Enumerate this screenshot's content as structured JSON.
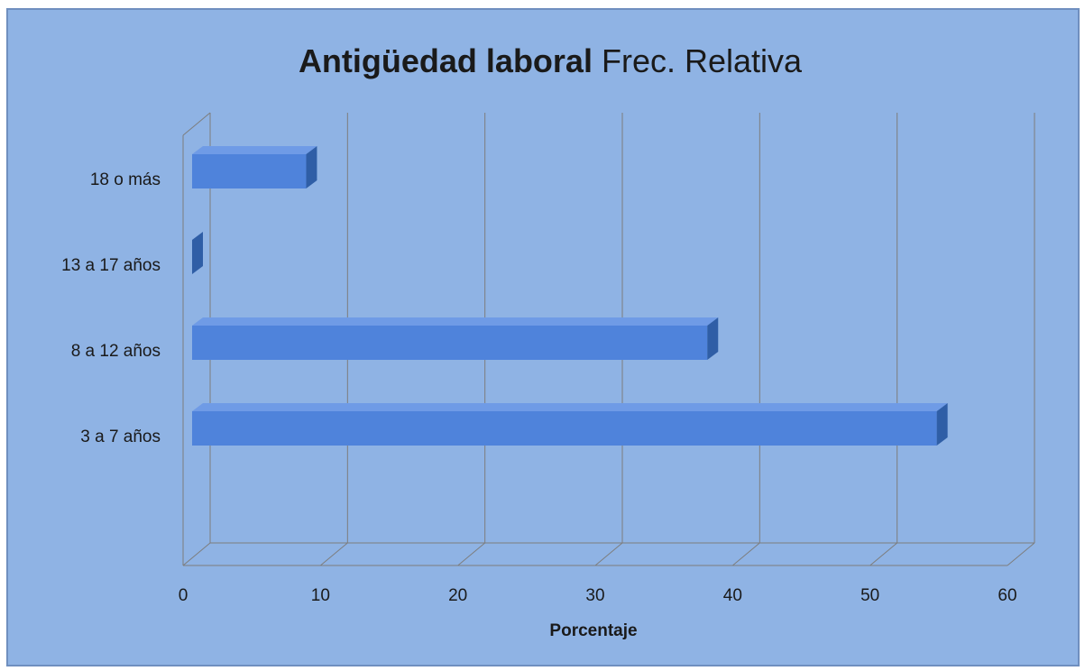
{
  "chart_data": {
    "type": "bar3d_horizontal",
    "title": "Antigüedad laboral",
    "subtitle": "Frec. Relativa",
    "x_label": "Porcentaje",
    "categories": [
      "18 o más",
      "13 a 17 años",
      "8 a 12 años",
      "3 a 7 años"
    ],
    "values": [
      8.3,
      0,
      37.5,
      54.2
    ],
    "color": "#4f83db",
    "xlim": [
      0,
      60
    ],
    "xticks": [
      0,
      10,
      20,
      30,
      40,
      50,
      60
    ],
    "grid": true
  }
}
